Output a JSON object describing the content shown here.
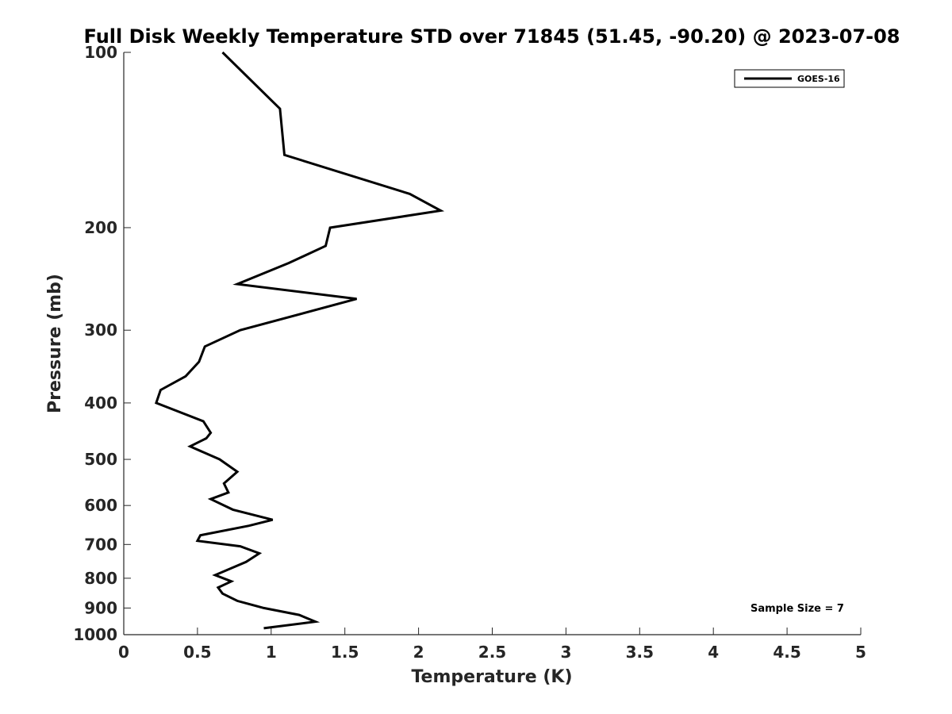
{
  "chart_data": {
    "type": "line",
    "title": "Full Disk Weekly Temperature STD over 71845 (51.45, -90.20) @ 2023-07-08",
    "xlabel": "Temperature (K)",
    "ylabel": "Pressure (mb)",
    "xlim": [
      0,
      5
    ],
    "ylim": [
      100,
      1000
    ],
    "y_scale": "log",
    "y_reversed": true,
    "x_ticks": [
      "0",
      "0.5",
      "1",
      "1.5",
      "2",
      "2.5",
      "3",
      "3.5",
      "4",
      "4.5",
      "5"
    ],
    "y_ticks": [
      "100",
      "200",
      "300",
      "400",
      "500",
      "600",
      "700",
      "800",
      "900",
      "1000"
    ],
    "grid": false,
    "legend_position": "top-right",
    "annotation": "Sample Size = 7",
    "series": [
      {
        "name": "GOES-16",
        "color": "#000000",
        "points": [
          [
            0.67,
            100
          ],
          [
            1.06,
            125
          ],
          [
            1.09,
            150
          ],
          [
            1.94,
            175
          ],
          [
            2.15,
            187
          ],
          [
            1.4,
            200
          ],
          [
            1.37,
            215
          ],
          [
            1.12,
            230
          ],
          [
            0.77,
            250
          ],
          [
            1.58,
            265
          ],
          [
            0.79,
            300
          ],
          [
            0.55,
            320
          ],
          [
            0.51,
            340
          ],
          [
            0.42,
            360
          ],
          [
            0.25,
            380
          ],
          [
            0.22,
            400
          ],
          [
            0.54,
            430
          ],
          [
            0.59,
            450
          ],
          [
            0.56,
            460
          ],
          [
            0.45,
            475
          ],
          [
            0.65,
            500
          ],
          [
            0.77,
            525
          ],
          [
            0.68,
            550
          ],
          [
            0.71,
            570
          ],
          [
            0.59,
            585
          ],
          [
            0.74,
            610
          ],
          [
            1.01,
            635
          ],
          [
            0.85,
            650
          ],
          [
            0.52,
            675
          ],
          [
            0.5,
            690
          ],
          [
            0.79,
            705
          ],
          [
            0.92,
            725
          ],
          [
            0.83,
            750
          ],
          [
            0.62,
            790
          ],
          [
            0.73,
            810
          ],
          [
            0.64,
            830
          ],
          [
            0.67,
            850
          ],
          [
            0.77,
            875
          ],
          [
            0.95,
            900
          ],
          [
            1.19,
            925
          ],
          [
            1.3,
            950
          ],
          [
            0.95,
            975
          ]
        ]
      }
    ]
  }
}
